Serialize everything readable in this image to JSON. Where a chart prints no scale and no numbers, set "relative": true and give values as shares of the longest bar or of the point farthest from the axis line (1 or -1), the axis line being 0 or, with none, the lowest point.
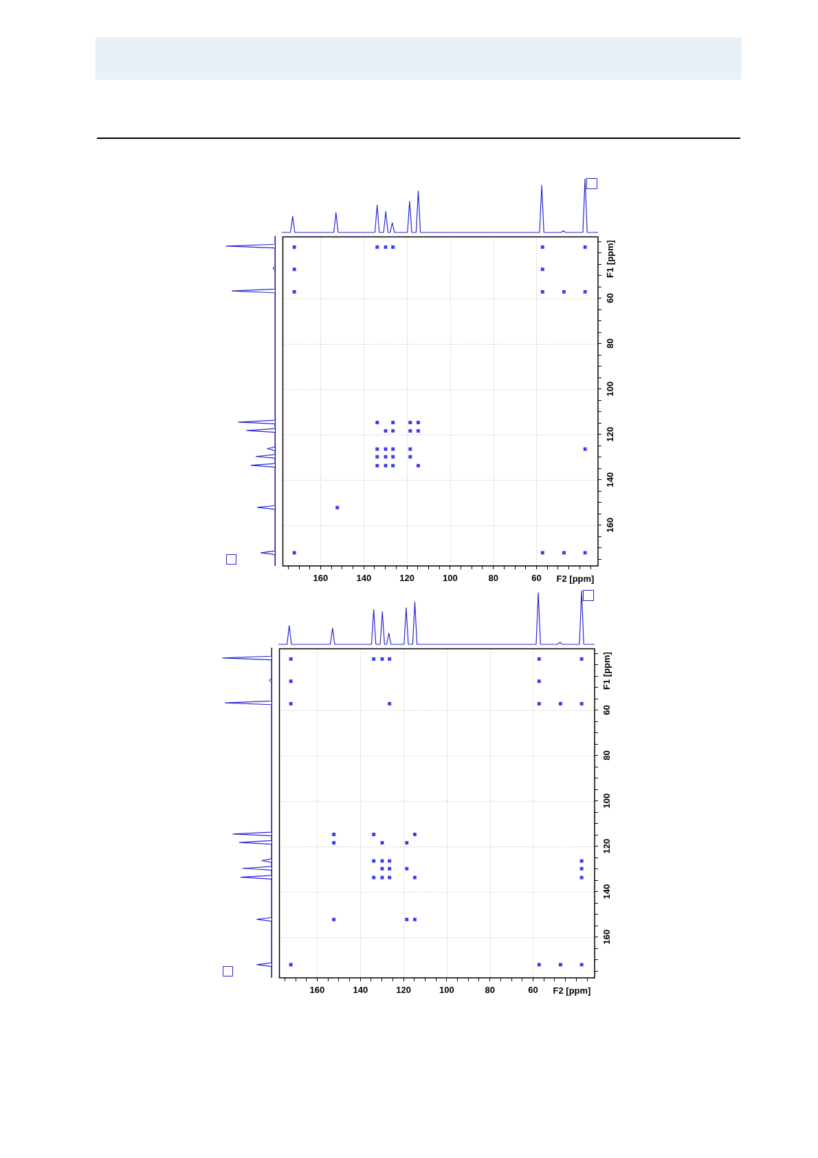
{
  "chart_data": [
    {
      "type": "line",
      "relative": true,
      "tick_labels": false,
      "color": "#2626d4",
      "categories": [
        null,
        null,
        null,
        null,
        null,
        null,
        null,
        null,
        null,
        null,
        null,
        null,
        null,
        null,
        null,
        null,
        null,
        null,
        null,
        null,
        null,
        null,
        null,
        null,
        null,
        null,
        null,
        null,
        null,
        null,
        null,
        null,
        null,
        null,
        null,
        null,
        null,
        null,
        null,
        null,
        null,
        null,
        null,
        null,
        null,
        null,
        null,
        null,
        null,
        null,
        null,
        null,
        null,
        null,
        null,
        null,
        null,
        null,
        null,
        null,
        null,
        null,
        null,
        null,
        null,
        null,
        null,
        null,
        null,
        null,
        null,
        null,
        null,
        null,
        null,
        null,
        null,
        null,
        null,
        null,
        null,
        null,
        null,
        null,
        null,
        null,
        null,
        null,
        null,
        null,
        null,
        null,
        null,
        null,
        null,
        null,
        null,
        null,
        null,
        null,
        null,
        null,
        null,
        null,
        null,
        null,
        null,
        null,
        null,
        null,
        null,
        null,
        null,
        null,
        null,
        null,
        null,
        null,
        null,
        null,
        null,
        null,
        null,
        null,
        null,
        null,
        null,
        null,
        null,
        null,
        null,
        null,
        null,
        null,
        null,
        null,
        null,
        null,
        null,
        null,
        null,
        null,
        null,
        null,
        null,
        null,
        null
      ],
      "values": [
        0,
        0,
        0,
        0,
        0,
        0.3,
        0,
        0,
        0,
        0,
        0,
        0,
        0,
        0,
        0,
        0,
        0,
        0,
        0,
        0,
        0,
        0,
        0,
        0,
        0,
        0.37,
        0,
        0,
        0,
        0,
        0,
        0,
        0,
        0,
        0,
        0,
        0,
        0,
        0,
        0,
        0,
        0,
        0,
        0,
        0.51,
        0,
        0,
        0,
        0.39,
        0,
        0,
        0.18,
        0,
        0,
        0,
        0,
        0,
        0,
        0,
        0.58,
        0,
        0,
        0,
        0.77,
        0,
        0,
        0,
        0,
        0,
        0,
        0,
        0,
        0,
        0,
        0,
        0,
        0,
        0,
        0,
        0,
        0,
        0,
        0,
        0,
        0,
        0,
        0,
        0,
        0,
        0,
        0,
        0,
        0,
        0,
        0,
        0,
        0,
        0,
        0,
        0,
        0,
        0,
        0,
        0,
        0,
        0,
        0,
        0,
        0,
        0,
        0,
        0,
        0,
        0,
        0,
        0,
        0,
        0,
        0,
        0,
        0.88,
        0,
        0,
        0,
        0,
        0,
        0,
        0,
        0,
        0,
        0.03,
        0,
        0,
        0,
        0,
        0,
        0,
        0,
        0,
        0,
        1,
        0,
        0,
        0,
        0,
        0,
        0
      ]
    },
    {
      "type": "line",
      "relative": true,
      "orientation": "horizontal",
      "tick_labels": false,
      "color": "#2626d4",
      "ylim": [
        178,
        33
      ],
      "x": [
        33,
        36.7,
        37.5,
        38.3,
        46.5,
        47.3,
        48.1,
        56.4,
        57.2,
        58,
        114,
        114.8,
        115.6,
        117.7,
        118.5,
        119.3,
        125.7,
        126.5,
        127.3,
        129.1,
        129.9,
        130.7,
        133,
        133.8,
        134.6,
        151.5,
        152.3,
        153.1,
        171.4,
        172.2,
        173,
        178
      ],
      "values": [
        0,
        0,
        -1,
        0,
        0,
        -0.04,
        0,
        0,
        -0.88,
        0,
        0,
        -0.75,
        0,
        0,
        -0.58,
        0,
        0,
        -0.16,
        0,
        0,
        -0.39,
        0,
        0,
        -0.49,
        0,
        0,
        -0.36,
        0,
        0,
        -0.29,
        0,
        0
      ]
    },
    {
      "type": "scatter",
      "marker": "square",
      "color": "#3b3bf0",
      "grid": true,
      "xlabel": "F2 [ppm]",
      "ylabel": "F1 [ppm]",
      "xlim": [
        177.5,
        31.5
      ],
      "ylim": [
        178,
        33
      ],
      "xticks": [
        {
          "value": 175,
          "label": null
        },
        {
          "value": 170,
          "label": null
        },
        {
          "value": 165,
          "label": null
        },
        160,
        {
          "value": 155,
          "label": null
        },
        {
          "value": 150,
          "label": null
        },
        {
          "value": 145,
          "label": null
        },
        140,
        {
          "value": 135,
          "label": null
        },
        {
          "value": 130,
          "label": null
        },
        {
          "value": 125,
          "label": null
        },
        120,
        {
          "value": 115,
          "label": null
        },
        {
          "value": 110,
          "label": null
        },
        {
          "value": 105,
          "label": null
        },
        100,
        {
          "value": 95,
          "label": null
        },
        {
          "value": 90,
          "label": null
        },
        {
          "value": 85,
          "label": null
        },
        80,
        {
          "value": 75,
          "label": null
        },
        {
          "value": 70,
          "label": null
        },
        {
          "value": 65,
          "label": null
        },
        60,
        {
          "value": 55,
          "label": null
        },
        {
          "value": 50,
          "label": null
        },
        {
          "value": 45,
          "label": null
        },
        {
          "value": 40,
          "label": null
        },
        {
          "value": 35,
          "label": null
        }
      ],
      "yticks": [
        {
          "value": 175,
          "label": null
        },
        {
          "value": 170,
          "label": null
        },
        {
          "value": 165,
          "label": null
        },
        160,
        {
          "value": 155,
          "label": null
        },
        {
          "value": 150,
          "label": null
        },
        {
          "value": 145,
          "label": null
        },
        140,
        {
          "value": 135,
          "label": null
        },
        {
          "value": 130,
          "label": null
        },
        {
          "value": 125,
          "label": null
        },
        120,
        {
          "value": 115,
          "label": null
        },
        {
          "value": 110,
          "label": null
        },
        {
          "value": 105,
          "label": null
        },
        100,
        {
          "value": 95,
          "label": null
        },
        {
          "value": 90,
          "label": null
        },
        {
          "value": 85,
          "label": null
        },
        80,
        {
          "value": 75,
          "label": null
        },
        {
          "value": 70,
          "label": null
        },
        {
          "value": 65,
          "label": null
        },
        60,
        {
          "value": 55,
          "label": null
        },
        {
          "value": 50,
          "label": null
        },
        {
          "value": 45,
          "label": null
        },
        {
          "value": 40,
          "label": null
        },
        {
          "value": 35,
          "label": null
        }
      ],
      "x": [
        172.2,
        133.8,
        129.9,
        126.5,
        57.2,
        37.5,
        172.2,
        57.2,
        172.2,
        57.2,
        47.3,
        37.5,
        133.8,
        126.5,
        118.5,
        114.8,
        129.9,
        126.5,
        118.5,
        114.8,
        133.8,
        129.9,
        126.5,
        118.5,
        37.5,
        133.8,
        129.9,
        126.5,
        118.5,
        133.8,
        129.9,
        126.5,
        114.8,
        152.3,
        172.2,
        57.2,
        47.3,
        37.5
      ],
      "values": [
        37.5,
        37.5,
        37.5,
        37.5,
        37.5,
        37.5,
        47.3,
        47.3,
        57.2,
        57.2,
        57.2,
        57.2,
        114.8,
        114.8,
        114.8,
        114.8,
        118.5,
        118.5,
        118.5,
        118.5,
        126.5,
        126.5,
        126.5,
        126.5,
        126.5,
        129.9,
        129.9,
        129.9,
        129.9,
        133.8,
        133.8,
        133.8,
        133.8,
        152.3,
        172.2,
        172.2,
        172.2,
        172.2
      ]
    },
    {
      "type": "line",
      "relative": true,
      "tick_labels": false,
      "color": "#2626d4",
      "categories": [
        null,
        null,
        null,
        null,
        null,
        null,
        null,
        null,
        null,
        null,
        null,
        null,
        null,
        null,
        null,
        null,
        null,
        null,
        null,
        null,
        null,
        null,
        null,
        null,
        null,
        null,
        null,
        null,
        null,
        null,
        null,
        null,
        null,
        null,
        null,
        null,
        null,
        null,
        null,
        null,
        null,
        null,
        null,
        null,
        null,
        null,
        null,
        null,
        null,
        null,
        null,
        null,
        null,
        null,
        null,
        null,
        null,
        null,
        null,
        null,
        null,
        null,
        null,
        null,
        null,
        null,
        null,
        null,
        null,
        null,
        null,
        null,
        null,
        null,
        null,
        null,
        null,
        null,
        null,
        null,
        null,
        null,
        null,
        null,
        null,
        null,
        null,
        null,
        null,
        null,
        null,
        null,
        null,
        null,
        null,
        null,
        null,
        null,
        null,
        null,
        null,
        null,
        null,
        null,
        null,
        null,
        null,
        null,
        null,
        null,
        null,
        null,
        null,
        null,
        null,
        null,
        null,
        null,
        null,
        null,
        null,
        null,
        null,
        null,
        null,
        null,
        null,
        null,
        null,
        null,
        null,
        null,
        null,
        null,
        null,
        null,
        null,
        null,
        null,
        null,
        null,
        null,
        null,
        null,
        null,
        null,
        null
      ],
      "values": [
        0,
        0,
        0,
        0,
        0,
        0.35,
        0,
        0,
        0,
        0,
        0,
        0,
        0,
        0,
        0,
        0,
        0,
        0,
        0,
        0,
        0,
        0,
        0,
        0,
        0,
        0.3,
        0,
        0,
        0,
        0,
        0,
        0,
        0,
        0,
        0,
        0,
        0,
        0,
        0,
        0,
        0,
        0,
        0,
        0,
        0.65,
        0,
        0,
        0,
        0.61,
        0,
        0,
        0.21,
        0,
        0,
        0,
        0,
        0,
        0,
        0,
        0.68,
        0,
        0,
        0,
        0.79,
        0,
        0,
        0,
        0,
        0,
        0,
        0,
        0,
        0,
        0,
        0,
        0,
        0,
        0,
        0,
        0,
        0,
        0,
        0,
        0,
        0,
        0,
        0,
        0,
        0,
        0,
        0,
        0,
        0,
        0,
        0,
        0,
        0,
        0,
        0,
        0,
        0,
        0,
        0,
        0,
        0,
        0,
        0,
        0,
        0,
        0,
        0,
        0,
        0,
        0,
        0,
        0,
        0,
        0,
        0,
        0,
        0.96,
        0,
        0,
        0,
        0,
        0,
        0,
        0,
        0,
        0,
        0.04,
        0,
        0,
        0,
        0,
        0,
        0,
        0,
        0,
        0,
        1,
        0,
        0,
        0,
        0,
        0,
        0
      ]
    },
    {
      "type": "line",
      "relative": true,
      "orientation": "horizontal",
      "tick_labels": false,
      "color": "#2626d4",
      "ylim": [
        178,
        33
      ],
      "x": [
        33,
        36.7,
        37.5,
        38.3,
        46.5,
        47.3,
        48.1,
        56.4,
        57.2,
        58,
        114,
        114.8,
        115.6,
        117.7,
        118.5,
        119.3,
        125.7,
        126.5,
        127.3,
        129.1,
        129.9,
        130.7,
        133,
        133.8,
        134.6,
        151.5,
        152.3,
        153.1,
        171.4,
        172.2,
        173,
        178
      ],
      "values": [
        0,
        0,
        -1,
        0,
        0,
        -0.04,
        0,
        0,
        -0.95,
        0,
        0,
        -0.79,
        0,
        0,
        -0.66,
        0,
        0,
        -0.2,
        0,
        0,
        -0.59,
        0,
        0,
        -0.63,
        0,
        0,
        -0.3,
        0,
        0,
        -0.3,
        0,
        0
      ]
    },
    {
      "type": "scatter",
      "marker": "square",
      "color": "#3b3bf0",
      "grid": true,
      "xlabel": "F2 [ppm]",
      "ylabel": "F1 [ppm]",
      "xlim": [
        177.5,
        31.5
      ],
      "ylim": [
        178,
        33
      ],
      "xticks": [
        {
          "value": 175,
          "label": null
        },
        {
          "value": 170,
          "label": null
        },
        {
          "value": 165,
          "label": null
        },
        160,
        {
          "value": 155,
          "label": null
        },
        {
          "value": 150,
          "label": null
        },
        {
          "value": 145,
          "label": null
        },
        140,
        {
          "value": 135,
          "label": null
        },
        {
          "value": 130,
          "label": null
        },
        {
          "value": 125,
          "label": null
        },
        120,
        {
          "value": 115,
          "label": null
        },
        {
          "value": 110,
          "label": null
        },
        {
          "value": 105,
          "label": null
        },
        100,
        {
          "value": 95,
          "label": null
        },
        {
          "value": 90,
          "label": null
        },
        {
          "value": 85,
          "label": null
        },
        80,
        {
          "value": 75,
          "label": null
        },
        {
          "value": 70,
          "label": null
        },
        {
          "value": 65,
          "label": null
        },
        60,
        {
          "value": 55,
          "label": null
        },
        {
          "value": 50,
          "label": null
        },
        {
          "value": 45,
          "label": null
        },
        {
          "value": 40,
          "label": null
        },
        {
          "value": 35,
          "label": null
        }
      ],
      "yticks": [
        {
          "value": 175,
          "label": null
        },
        {
          "value": 170,
          "label": null
        },
        {
          "value": 165,
          "label": null
        },
        160,
        {
          "value": 155,
          "label": null
        },
        {
          "value": 150,
          "label": null
        },
        {
          "value": 145,
          "label": null
        },
        140,
        {
          "value": 135,
          "label": null
        },
        {
          "value": 130,
          "label": null
        },
        {
          "value": 125,
          "label": null
        },
        120,
        {
          "value": 115,
          "label": null
        },
        {
          "value": 110,
          "label": null
        },
        {
          "value": 105,
          "label": null
        },
        100,
        {
          "value": 95,
          "label": null
        },
        {
          "value": 90,
          "label": null
        },
        {
          "value": 85,
          "label": null
        },
        80,
        {
          "value": 75,
          "label": null
        },
        {
          "value": 70,
          "label": null
        },
        {
          "value": 65,
          "label": null
        },
        60,
        {
          "value": 55,
          "label": null
        },
        {
          "value": 50,
          "label": null
        },
        {
          "value": 45,
          "label": null
        },
        {
          "value": 40,
          "label": null
        },
        {
          "value": 35,
          "label": null
        }
      ],
      "x": [
        172.2,
        133.8,
        129.9,
        126.5,
        57.2,
        37.5,
        172.2,
        57.2,
        172.2,
        126.5,
        57.2,
        47.3,
        37.5,
        152.3,
        133.8,
        114.8,
        152.3,
        129.9,
        118.5,
        133.8,
        129.9,
        126.5,
        37.5,
        129.9,
        126.5,
        118.5,
        37.5,
        133.8,
        129.9,
        126.5,
        114.8,
        37.5,
        152.3,
        118.5,
        114.8,
        172.2,
        57.2,
        47.3,
        37.5
      ],
      "values": [
        37.5,
        37.5,
        37.5,
        37.5,
        37.5,
        37.5,
        47.3,
        47.3,
        57.2,
        57.2,
        57.2,
        57.2,
        57.2,
        114.8,
        114.8,
        114.8,
        118.5,
        118.5,
        118.5,
        126.5,
        126.5,
        126.5,
        126.5,
        129.9,
        129.9,
        129.9,
        129.9,
        133.8,
        133.8,
        133.8,
        133.8,
        133.8,
        152.3,
        152.3,
        152.3,
        172.2,
        172.2,
        172.2,
        172.2
      ]
    }
  ]
}
